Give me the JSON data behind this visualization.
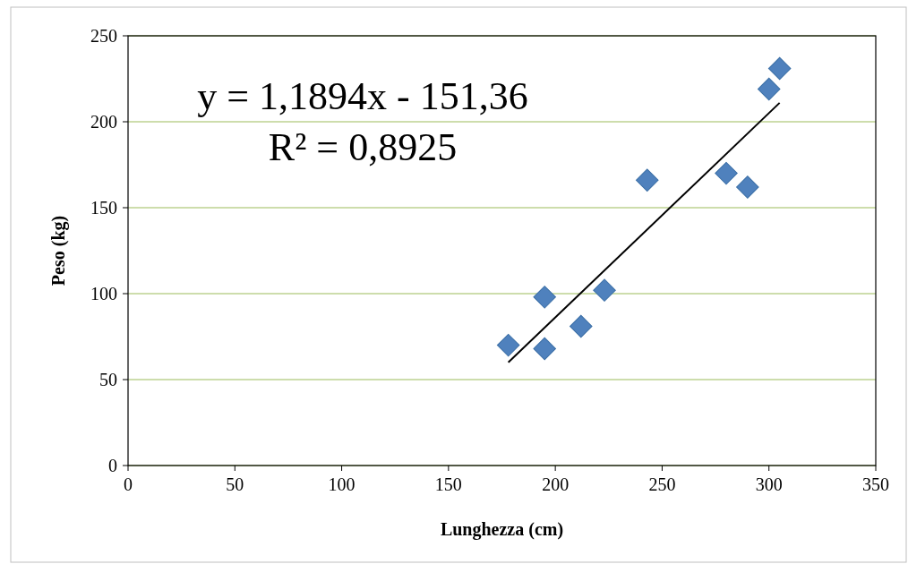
{
  "chart_data": {
    "type": "scatter",
    "xlabel": "Lunghezza (cm)",
    "ylabel": "Peso (kg)",
    "x": [
      178,
      195,
      195,
      212,
      223,
      243,
      280,
      290,
      300,
      305
    ],
    "series": [
      {
        "color": "#4f81bd",
        "values": [
          70,
          98,
          68,
          81,
          102,
          166,
          170,
          162,
          219,
          231
        ],
        "marker": "diamond"
      },
      {
        "type": "line",
        "color": "#000000",
        "x": [
          178,
          305
        ],
        "values": [
          60,
          211
        ],
        "marker": "none",
        "line_style": "solid"
      }
    ],
    "xlim": [
      0,
      350
    ],
    "xticks": [
      0,
      50,
      100,
      150,
      200,
      250,
      300,
      350
    ],
    "ylim": [
      0,
      250
    ],
    "yticks": [
      0,
      50,
      100,
      150,
      200,
      250
    ],
    "grid": "y",
    "annotations": [
      "y = 1,1894x - 151,36",
      "R² = 0,8925"
    ]
  }
}
